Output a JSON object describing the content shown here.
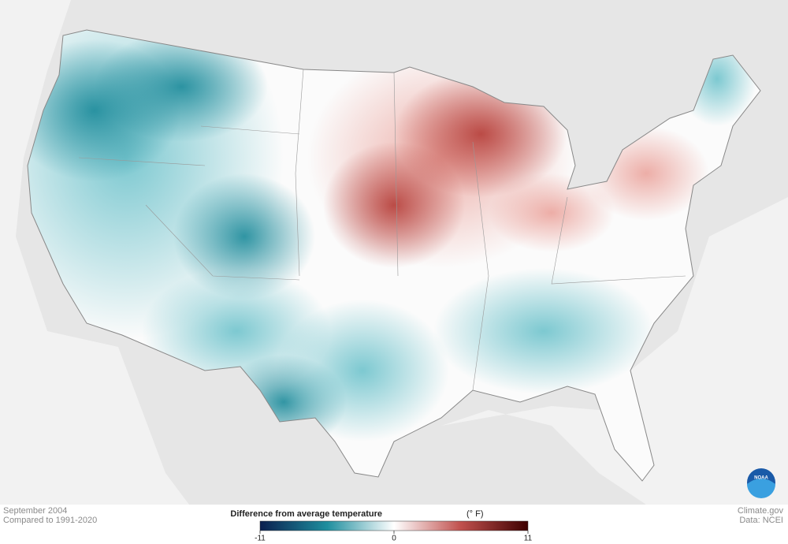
{
  "caption": {
    "title": "September 2004",
    "subtitle": "Compared to 1991-2020"
  },
  "legend": {
    "title": "Difference from average temperature",
    "unit": "(° F)",
    "range": [
      -11,
      11
    ],
    "ticks": [
      -11,
      0,
      11
    ]
  },
  "credits": {
    "site": "Climate.gov",
    "source": "Data: NCEI",
    "logo": "NOAA"
  }
}
